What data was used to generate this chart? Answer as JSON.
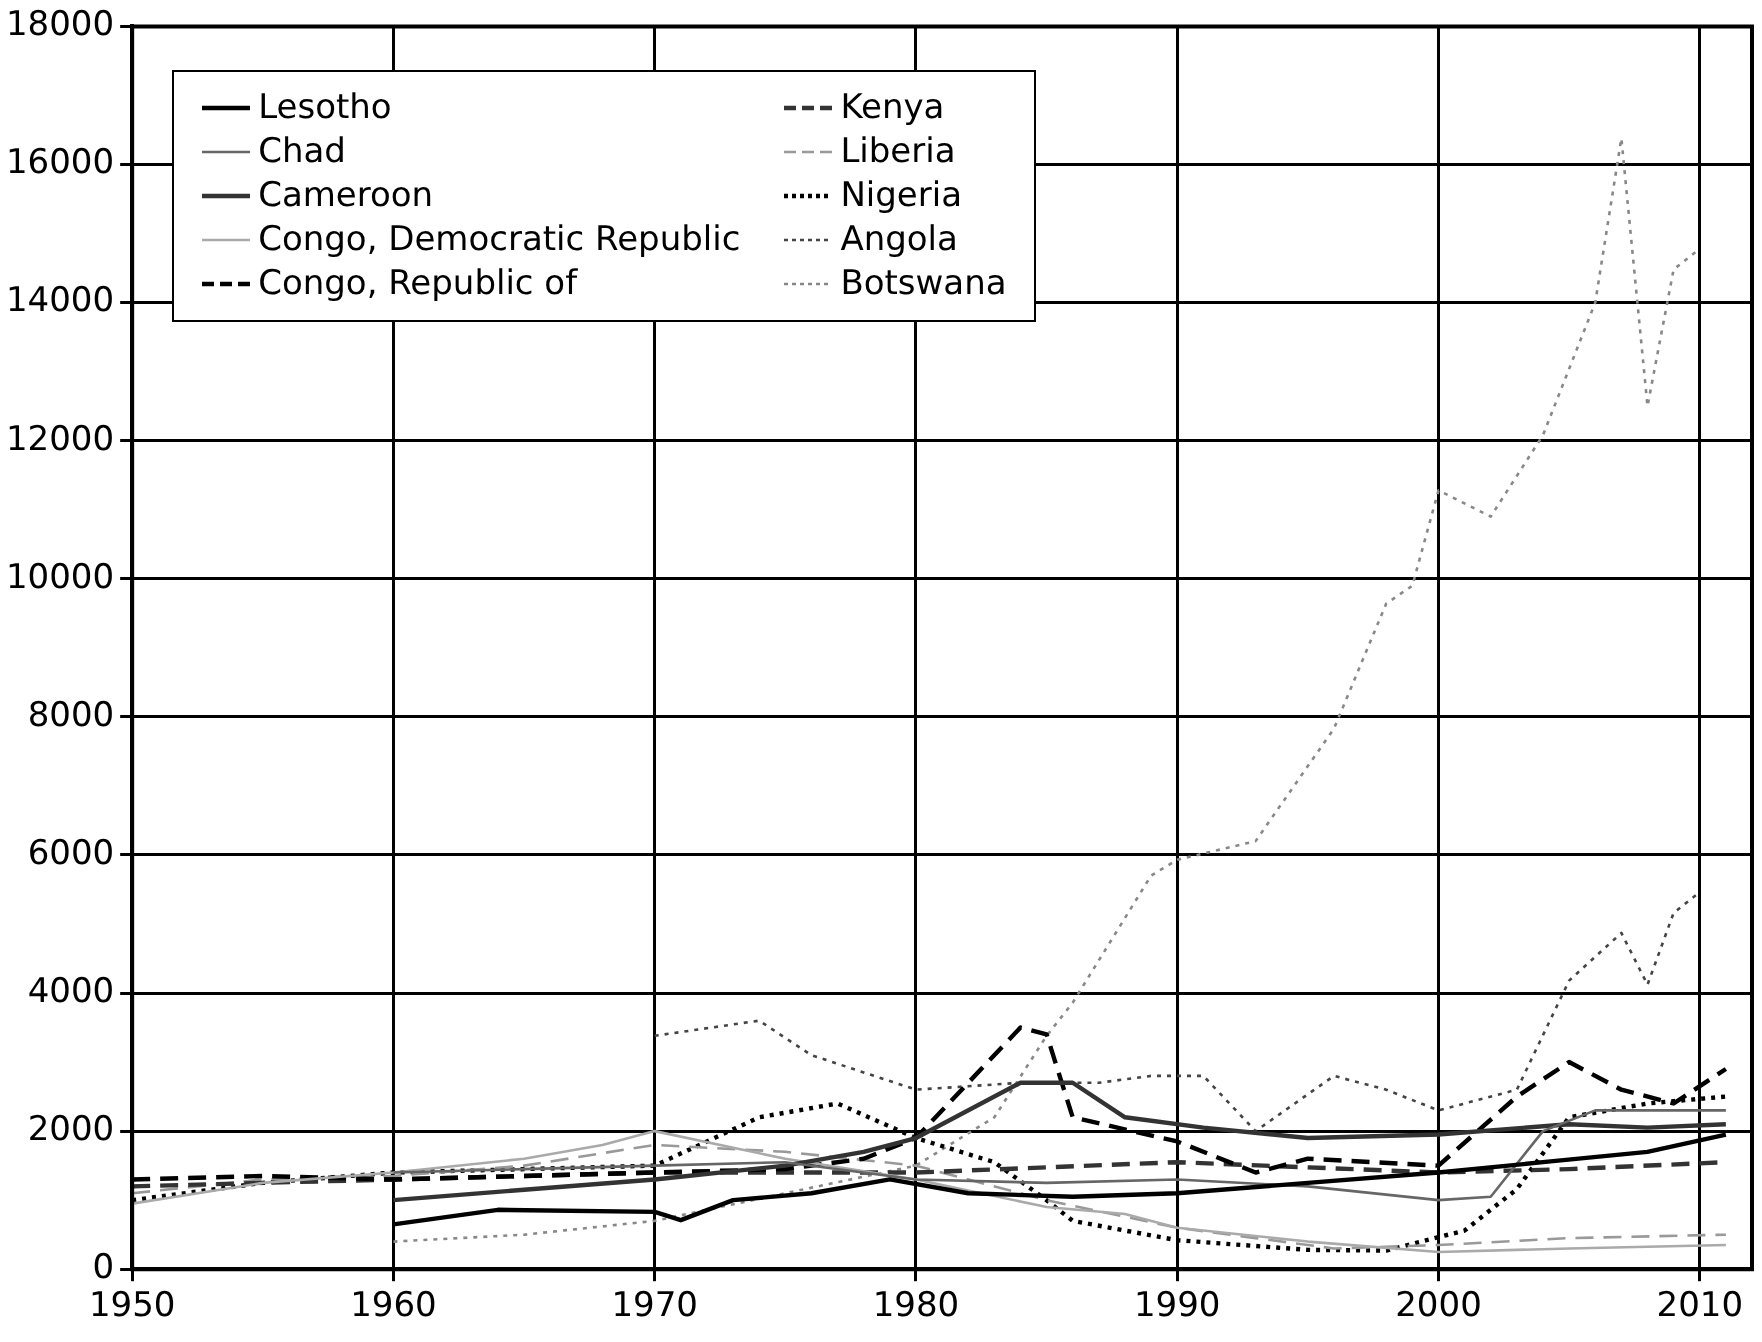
{
  "chart_data": {
    "type": "line",
    "xlim": [
      1950,
      2012
    ],
    "ylim": [
      0,
      18000
    ],
    "xticks": [
      1950,
      1960,
      1970,
      1980,
      1990,
      2000,
      2010
    ],
    "yticks": [
      0,
      2000,
      4000,
      6000,
      8000,
      10000,
      12000,
      14000,
      16000,
      18000
    ],
    "grid": true,
    "legend": "top left",
    "marker": "none",
    "series": [
      {
        "name": "Lesotho",
        "color": "#000000",
        "line_style": "solid",
        "x": [
          1960,
          1964,
          1970,
          1971,
          1973,
          1976,
          1979,
          1982,
          1986,
          1990,
          1995,
          2000,
          2004,
          2008,
          2011
        ],
        "values": [
          650,
          860,
          830,
          710,
          1000,
          1100,
          1300,
          1100,
          1050,
          1100,
          1250,
          1400,
          1550,
          1700,
          1950
        ]
      },
      {
        "name": "Chad",
        "color": "#666666",
        "line_style": "solid",
        "x": [
          1960,
          1965,
          1970,
          1975,
          1980,
          1985,
          1990,
          1995,
          2000,
          2002,
          2004,
          2006,
          2009,
          2011
        ],
        "values": [
          1400,
          1450,
          1500,
          1550,
          1300,
          1250,
          1300,
          1200,
          1000,
          1050,
          2000,
          2300,
          2300,
          2300
        ]
      },
      {
        "name": "Cameroon",
        "color": "#333333",
        "line_style": "solid",
        "x": [
          1960,
          1965,
          1970,
          1975,
          1978,
          1980,
          1984,
          1986,
          1988,
          1991,
          1995,
          2000,
          2005,
          2008,
          2011
        ],
        "values": [
          1000,
          1150,
          1300,
          1500,
          1700,
          1900,
          2700,
          2700,
          2200,
          2050,
          1900,
          1950,
          2100,
          2050,
          2100
        ]
      },
      {
        "name": "Congo, Democratic Republic",
        "color": "#aaaaaa",
        "line_style": "solid",
        "x": [
          1950,
          1955,
          1960,
          1965,
          1968,
          1970,
          1975,
          1980,
          1985,
          1988,
          1990,
          1995,
          2000,
          2005,
          2011
        ],
        "values": [
          950,
          1250,
          1400,
          1600,
          1800,
          2000,
          1600,
          1300,
          900,
          800,
          600,
          400,
          250,
          300,
          350
        ]
      },
      {
        "name": "Congo, Republic of",
        "color": "#000000",
        "line_style": "dashed",
        "x": [
          1950,
          1955,
          1960,
          1965,
          1970,
          1975,
          1978,
          1980,
          1984,
          1985,
          1986,
          1990,
          1993,
          1995,
          2000,
          2003,
          2005,
          2007,
          2009,
          2011
        ],
        "values": [
          1300,
          1350,
          1300,
          1350,
          1400,
          1450,
          1600,
          1900,
          3500,
          3400,
          2200,
          1850,
          1400,
          1600,
          1500,
          2500,
          3000,
          2600,
          2400,
          2900
        ]
      },
      {
        "name": "Kenya",
        "color": "#333333",
        "line_style": "dashed",
        "x": [
          1950,
          1960,
          1970,
          1980,
          1990,
          2000,
          2005,
          2011
        ],
        "values": [
          1200,
          1300,
          1400,
          1400,
          1550,
          1400,
          1450,
          1550
        ]
      },
      {
        "name": "Liberia",
        "color": "#999999",
        "line_style": "dashed",
        "x": [
          1950,
          1955,
          1960,
          1965,
          1970,
          1975,
          1980,
          1985,
          1990,
          1993,
          1996,
          2000,
          2005,
          2011
        ],
        "values": [
          1100,
          1300,
          1350,
          1500,
          1800,
          1700,
          1500,
          1000,
          600,
          450,
          300,
          350,
          450,
          500
        ]
      },
      {
        "name": "Nigeria",
        "color": "#000000",
        "line_style": "dotted",
        "x": [
          1950,
          1955,
          1960,
          1965,
          1970,
          1974,
          1977,
          1980,
          1983,
          1985,
          1986,
          1990,
          1995,
          1998,
          2001,
          2003,
          2005,
          2008,
          2011
        ],
        "values": [
          1000,
          1250,
          1400,
          1450,
          1500,
          2200,
          2400,
          1900,
          1550,
          1000,
          700,
          420,
          280,
          270,
          560,
          1160,
          2200,
          2400,
          2500
        ]
      },
      {
        "name": "Angola",
        "color": "#444444",
        "line_style": "dotted",
        "x": [
          1970,
          1974,
          1976,
          1980,
          1984,
          1987,
          1989,
          1991,
          1993,
          1996,
          1998,
          2000,
          2003,
          2005,
          2007,
          2008,
          2009,
          2010
        ],
        "values": [
          3380,
          3600,
          3100,
          2600,
          2700,
          2700,
          2800,
          2800,
          2000,
          2800,
          2600,
          2300,
          2600,
          4180,
          4870,
          4120,
          5160,
          5460
        ]
      },
      {
        "name": "Botswana",
        "color": "#888888",
        "line_style": "dotted",
        "x": [
          1960,
          1965,
          1970,
          1975,
          1980,
          1983,
          1985,
          1986,
          1989,
          1990,
          1993,
          1996,
          1998,
          1999,
          2000,
          2002,
          2004,
          2006,
          2007,
          2008,
          2009,
          2010
        ],
        "values": [
          400,
          500,
          700,
          1100,
          1500,
          2200,
          3380,
          3860,
          5700,
          5930,
          6200,
          7830,
          9640,
          9900,
          11280,
          10900,
          12080,
          14000,
          16380,
          12500,
          14480,
          14780
        ]
      }
    ]
  }
}
